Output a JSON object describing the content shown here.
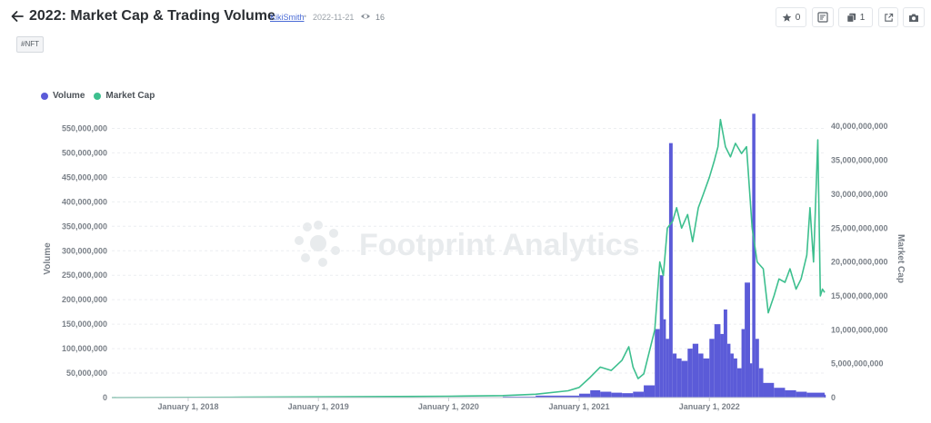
{
  "header": {
    "title": "2022: Market Cap & Trading Volume",
    "author": "KikiSmith",
    "separator": "•",
    "date": "2022-11-21",
    "views": "16",
    "star_count": "0",
    "copy_count": "1"
  },
  "tag": "#NFT",
  "watermark": "Footprint Analytics",
  "icons": [
    "arrow-left-icon",
    "eye-icon",
    "star-icon",
    "edit-icon",
    "copy-icon",
    "share-icon",
    "camera-icon",
    "footprint-logo-icon"
  ],
  "colors": {
    "volume": "#5b5bd8",
    "market_cap": "#3dbf8e",
    "grid": "#eceef1",
    "axis_text": "#7a8088"
  },
  "chart_data": {
    "type": "area",
    "legend": [
      "Volume",
      "Market Cap"
    ],
    "legend_placement": "top-left",
    "grid": true,
    "x_ticks": [
      "January 1, 2018",
      "January 1, 2019",
      "January 1, 2020",
      "January 1, 2021",
      "January 1, 2022"
    ],
    "x_range": [
      "2017-06-01",
      "2022-11-20"
    ],
    "left_axis": {
      "label": "Volume",
      "range": [
        0,
        575000000
      ],
      "ticks": [
        "0",
        "50,000,000",
        "100,000,000",
        "150,000,000",
        "200,000,000",
        "250,000,000",
        "300,000,000",
        "350,000,000",
        "400,000,000",
        "450,000,000",
        "500,000,000",
        "550,000,000"
      ]
    },
    "right_axis": {
      "label": "Market Cap",
      "range": [
        0,
        41500000000
      ],
      "ticks": [
        "0",
        "5,000,000,000",
        "10,000,000,000",
        "15,000,000,000",
        "20,000,000,000",
        "25,000,000,000",
        "30,000,000,000",
        "35,000,000,000",
        "40,000,000,000"
      ]
    },
    "series": [
      {
        "name": "Volume",
        "axis": "left",
        "chart": "bar",
        "points": [
          [
            "2017-06-01",
            0
          ],
          [
            "2018-06-01",
            200000
          ],
          [
            "2019-06-01",
            300000
          ],
          [
            "2020-01-01",
            1000000
          ],
          [
            "2020-06-01",
            2000000
          ],
          [
            "2020-09-01",
            4000000
          ],
          [
            "2021-01-01",
            8000000
          ],
          [
            "2021-02-01",
            15000000
          ],
          [
            "2021-03-01",
            12000000
          ],
          [
            "2021-04-01",
            10000000
          ],
          [
            "2021-05-01",
            9000000
          ],
          [
            "2021-06-01",
            12000000
          ],
          [
            "2021-07-01",
            25000000
          ],
          [
            "2021-08-01",
            140000000
          ],
          [
            "2021-08-15",
            250000000
          ],
          [
            "2021-08-25",
            160000000
          ],
          [
            "2021-09-01",
            120000000
          ],
          [
            "2021-09-10",
            520000000
          ],
          [
            "2021-09-20",
            90000000
          ],
          [
            "2021-10-01",
            80000000
          ],
          [
            "2021-10-15",
            75000000
          ],
          [
            "2021-11-01",
            100000000
          ],
          [
            "2021-11-15",
            110000000
          ],
          [
            "2021-12-01",
            90000000
          ],
          [
            "2021-12-15",
            80000000
          ],
          [
            "2022-01-01",
            120000000
          ],
          [
            "2022-01-15",
            150000000
          ],
          [
            "2022-02-01",
            130000000
          ],
          [
            "2022-02-10",
            180000000
          ],
          [
            "2022-02-20",
            110000000
          ],
          [
            "2022-03-01",
            90000000
          ],
          [
            "2022-03-10",
            80000000
          ],
          [
            "2022-03-20",
            60000000
          ],
          [
            "2022-04-01",
            140000000
          ],
          [
            "2022-04-10",
            235000000
          ],
          [
            "2022-04-25",
            70000000
          ],
          [
            "2022-05-01",
            580000000
          ],
          [
            "2022-05-10",
            120000000
          ],
          [
            "2022-05-20",
            60000000
          ],
          [
            "2022-06-01",
            30000000
          ],
          [
            "2022-07-01",
            20000000
          ],
          [
            "2022-08-01",
            15000000
          ],
          [
            "2022-09-01",
            12000000
          ],
          [
            "2022-10-01",
            10000000
          ],
          [
            "2022-11-20",
            6000000
          ]
        ]
      },
      {
        "name": "Market Cap",
        "axis": "right",
        "chart": "line",
        "points": [
          [
            "2017-06-01",
            0
          ],
          [
            "2018-06-01",
            50000000
          ],
          [
            "2019-06-01",
            150000000
          ],
          [
            "2020-01-01",
            200000000
          ],
          [
            "2020-06-01",
            300000000
          ],
          [
            "2020-09-01",
            500000000
          ],
          [
            "2020-12-01",
            1000000000
          ],
          [
            "2021-01-01",
            1500000000
          ],
          [
            "2021-02-01",
            3000000000
          ],
          [
            "2021-03-01",
            4500000000
          ],
          [
            "2021-04-01",
            4000000000
          ],
          [
            "2021-05-01",
            5500000000
          ],
          [
            "2021-05-20",
            7500000000
          ],
          [
            "2021-06-01",
            4500000000
          ],
          [
            "2021-06-15",
            2800000000
          ],
          [
            "2021-07-01",
            3500000000
          ],
          [
            "2021-08-01",
            10000000000
          ],
          [
            "2021-08-15",
            20000000000
          ],
          [
            "2021-08-25",
            18000000000
          ],
          [
            "2021-09-05",
            25000000000
          ],
          [
            "2021-09-20",
            26000000000
          ],
          [
            "2021-10-01",
            28000000000
          ],
          [
            "2021-10-15",
            25000000000
          ],
          [
            "2021-11-01",
            27000000000
          ],
          [
            "2021-11-15",
            23000000000
          ],
          [
            "2021-12-01",
            28000000000
          ],
          [
            "2021-12-15",
            30000000000
          ],
          [
            "2022-01-01",
            32500000000
          ],
          [
            "2022-01-15",
            35000000000
          ],
          [
            "2022-01-25",
            37000000000
          ],
          [
            "2022-02-01",
            41000000000
          ],
          [
            "2022-02-15",
            37000000000
          ],
          [
            "2022-03-01",
            35500000000
          ],
          [
            "2022-03-15",
            37500000000
          ],
          [
            "2022-04-01",
            36000000000
          ],
          [
            "2022-04-15",
            37000000000
          ],
          [
            "2022-05-01",
            25000000000
          ],
          [
            "2022-05-15",
            20000000000
          ],
          [
            "2022-06-01",
            19000000000
          ],
          [
            "2022-06-15",
            12500000000
          ],
          [
            "2022-07-01",
            15000000000
          ],
          [
            "2022-07-15",
            17500000000
          ],
          [
            "2022-08-01",
            17000000000
          ],
          [
            "2022-08-15",
            19000000000
          ],
          [
            "2022-09-01",
            16000000000
          ],
          [
            "2022-09-15",
            17500000000
          ],
          [
            "2022-10-01",
            21000000000
          ],
          [
            "2022-10-10",
            28000000000
          ],
          [
            "2022-10-20",
            20000000000
          ],
          [
            "2022-11-01",
            38000000000
          ],
          [
            "2022-11-08",
            15000000000
          ],
          [
            "2022-11-14",
            16000000000
          ],
          [
            "2022-11-20",
            15500000000
          ]
        ]
      }
    ]
  }
}
